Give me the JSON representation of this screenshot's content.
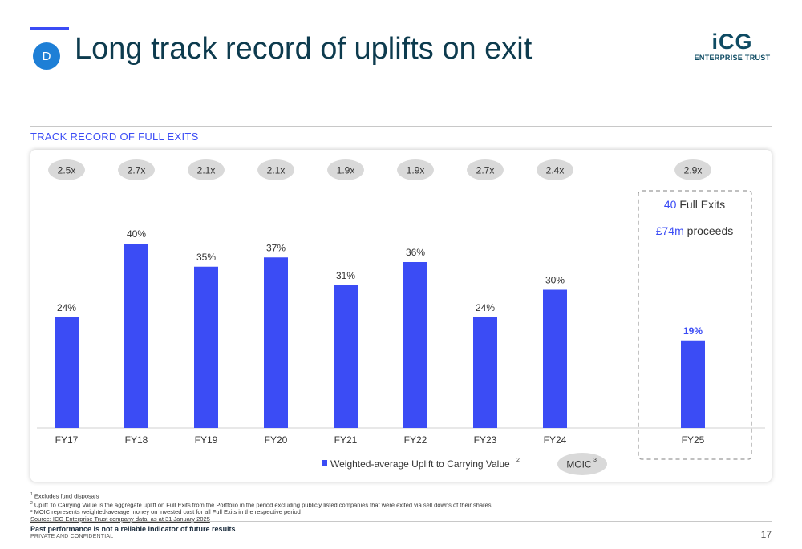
{
  "header": {
    "section_letter": "D",
    "title": "Long track record of uplifts on exit",
    "logo_mark": "iCG",
    "logo_sub": "ENTERPRISE TRUST"
  },
  "section_heading": "TRACK RECORD OF FULL EXITS",
  "chart_data": {
    "type": "bar",
    "categories": [
      "FY17",
      "FY18",
      "FY19",
      "FY20",
      "FY21",
      "FY22",
      "FY23",
      "FY24",
      "FY25"
    ],
    "series": [
      {
        "name": "Weighted-average Uplift to Carrying Value",
        "values": [
          24,
          40,
          35,
          37,
          31,
          36,
          24,
          30,
          19
        ],
        "labels": [
          "24%",
          "40%",
          "35%",
          "37%",
          "31%",
          "36%",
          "24%",
          "30%",
          "19%"
        ]
      }
    ],
    "moic": [
      "2.5x",
      "2.7x",
      "2.1x",
      "2.1x",
      "1.9x",
      "1.9x",
      "2.7x",
      "2.4x",
      "2.9x"
    ],
    "ylim": [
      0,
      50
    ],
    "bar_color": "#3b4cf5",
    "grid": false,
    "legend": {
      "series_label": "Weighted-average Uplift to Carrying Value",
      "series_sup": "2",
      "moic_label": "MOIC",
      "moic_sup": "3",
      "placement": "bottom"
    },
    "highlight": {
      "category": "FY25",
      "exits_value": "40",
      "exits_text": "Full Exits",
      "proceeds_value": "£74m",
      "proceeds_text": "proceeds"
    }
  },
  "footnotes": {
    "n1_sup": "1",
    "n1": "Excludes fund disposals",
    "n2_sup": "2",
    "n2": "Uplift To Carrying Value is the aggregate uplift on Full Exits from the Portfolio in the period excluding publicly listed companies that were exited via sell downs of their shares",
    "n3": "³ MOIC represents weighted-average money on invested cost for all Full Exits in the respective period",
    "source": "Source: ICG Enterprise Trust company data, as at 31 January 2025"
  },
  "footer": {
    "disclaimer": "Past performance is not a reliable indicator of future results",
    "confidential": "PRIVATE AND CONFIDENTIAL",
    "page_number": "17"
  }
}
